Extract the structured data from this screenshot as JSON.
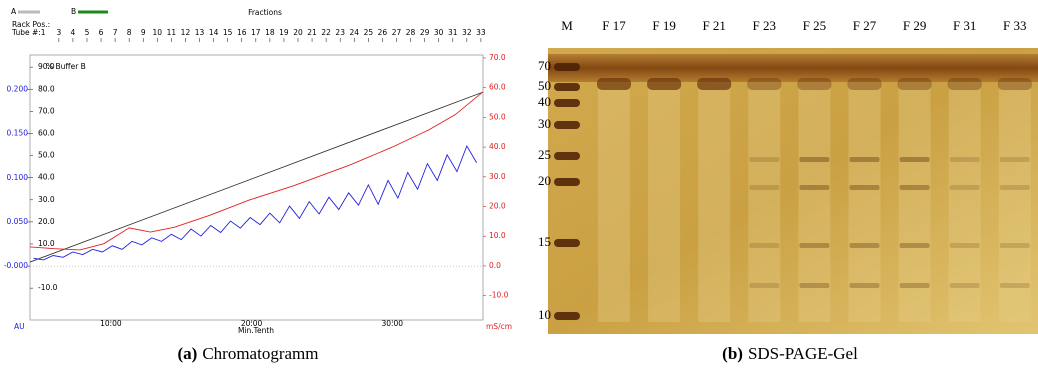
{
  "chart_data": {
    "type": "line",
    "header": {
      "rack": "Rack Pos.:",
      "tube": "Tube #:1",
      "a": "A",
      "b": "B",
      "fractions": "Fractions"
    },
    "x_label": "Min.Tenth",
    "y_label": "AU",
    "y2_label": "mS/cm",
    "y3_label": "% Buffer B",
    "xlim": [
      4.25,
      36.45
    ],
    "xticks": [
      {
        "value": 10,
        "label": "10.00"
      },
      {
        "value": 20,
        "label": "20.00"
      },
      {
        "value": 30,
        "label": "30.00"
      }
    ],
    "fraction_ticks": [
      {
        "value": 6.3,
        "label": "3"
      },
      {
        "value": 7.3,
        "label": "4"
      },
      {
        "value": 8.3,
        "label": "5"
      },
      {
        "value": 9.3,
        "label": "6"
      },
      {
        "value": 10.3,
        "label": "7"
      },
      {
        "value": 11.3,
        "label": "8"
      },
      {
        "value": 12.3,
        "label": "9"
      },
      {
        "value": 13.3,
        "label": "10"
      },
      {
        "value": 14.3,
        "label": "11"
      },
      {
        "value": 15.3,
        "label": "12"
      },
      {
        "value": 16.3,
        "label": "13"
      },
      {
        "value": 17.3,
        "label": "14"
      },
      {
        "value": 18.3,
        "label": "15"
      },
      {
        "value": 19.3,
        "label": "16"
      },
      {
        "value": 20.3,
        "label": "17"
      },
      {
        "value": 21.3,
        "label": "18"
      },
      {
        "value": 22.3,
        "label": "19"
      },
      {
        "value": 23.3,
        "label": "20"
      },
      {
        "value": 24.3,
        "label": "21"
      },
      {
        "value": 25.3,
        "label": "22"
      },
      {
        "value": 26.3,
        "label": "23"
      },
      {
        "value": 27.3,
        "label": "24"
      },
      {
        "value": 28.3,
        "label": "25"
      },
      {
        "value": 29.3,
        "label": "26"
      },
      {
        "value": 30.3,
        "label": "27"
      },
      {
        "value": 31.3,
        "label": "28"
      },
      {
        "value": 32.3,
        "label": "29"
      },
      {
        "value": 33.3,
        "label": "30"
      },
      {
        "value": 34.3,
        "label": "31"
      },
      {
        "value": 35.3,
        "label": "32"
      },
      {
        "value": 36.3,
        "label": "33"
      }
    ],
    "ylim": [
      -0.061,
      0.239
    ],
    "yticks": [
      {
        "value": 0,
        "label": "-0.000"
      },
      {
        "value": 0.05,
        "label": "0.050"
      },
      {
        "value": 0.1,
        "label": "0.100"
      },
      {
        "value": 0.15,
        "label": "0.150"
      },
      {
        "value": 0.2,
        "label": "0.200"
      }
    ],
    "y2lim": [
      -18.2,
      71.0
    ],
    "y2ticks": [
      {
        "value": -10,
        "label": "-10.0"
      },
      {
        "value": 0,
        "label": "0.0"
      },
      {
        "value": 10,
        "label": "10.0"
      },
      {
        "value": 20,
        "label": "20.0"
      },
      {
        "value": 30,
        "label": "30.0"
      },
      {
        "value": 40,
        "label": "40.0"
      },
      {
        "value": 50,
        "label": "50.0"
      },
      {
        "value": 60,
        "label": "60.0"
      },
      {
        "value": 70,
        "label": "70.0"
      }
    ],
    "y3lim": [
      -24.4,
      95.5
    ],
    "y3ticks": [
      {
        "value": -10,
        "label": "-10.0"
      },
      {
        "value": 10,
        "label": "10.0"
      },
      {
        "value": 20,
        "label": "20.0"
      },
      {
        "value": 30,
        "label": "30.0"
      },
      {
        "value": 40,
        "label": "40.0"
      },
      {
        "value": 50,
        "label": "50.0"
      },
      {
        "value": 60,
        "label": "60.0"
      },
      {
        "value": 70,
        "label": "70.0"
      },
      {
        "value": 80,
        "label": "80.0"
      },
      {
        "value": 90,
        "label": "90.0"
      }
    ],
    "series": [
      {
        "color": "#333333",
        "axis": "y3",
        "x": [
          4.25,
          36.45
        ],
        "values": [
          1.8,
          78.7
        ]
      },
      {
        "color": "#e02020",
        "axis": "y2",
        "x": [
          4.25,
          6,
          7.8,
          9.5,
          11.3,
          12.8,
          14.5,
          17,
          19.85,
          23,
          27,
          30,
          32.6,
          34.5,
          36.45
        ],
        "values": [
          6.4,
          5.8,
          5.4,
          7.5,
          12.8,
          11.4,
          13,
          17,
          22.2,
          27,
          34,
          40,
          45.8,
          51,
          58.6
        ]
      },
      {
        "color": "#2020e0",
        "axis": "y",
        "x": [
          4.5,
          5.2,
          5.9,
          6.6,
          7.3,
          8.0,
          8.7,
          9.4,
          10.1,
          10.8,
          11.5,
          12.2,
          12.9,
          13.6,
          14.3,
          15.0,
          15.7,
          16.4,
          17.1,
          17.8,
          18.5,
          19.2,
          19.9,
          20.6,
          21.3,
          22.0,
          22.7,
          23.4,
          24.1,
          24.8,
          25.5,
          26.2,
          26.9,
          27.6,
          28.3,
          29.0,
          29.7,
          30.4,
          31.1,
          31.8,
          32.5,
          33.2,
          33.9,
          34.6,
          35.3,
          36.0
        ],
        "values": [
          0.009,
          0.007,
          0.012,
          0.01,
          0.016,
          0.013,
          0.019,
          0.016,
          0.023,
          0.019,
          0.028,
          0.024,
          0.032,
          0.028,
          0.036,
          0.03,
          0.042,
          0.034,
          0.046,
          0.038,
          0.051,
          0.043,
          0.055,
          0.047,
          0.06,
          0.049,
          0.068,
          0.054,
          0.073,
          0.059,
          0.078,
          0.064,
          0.083,
          0.069,
          0.092,
          0.07,
          0.097,
          0.077,
          0.106,
          0.087,
          0.116,
          0.097,
          0.126,
          0.107,
          0.136,
          0.117
        ]
      }
    ]
  },
  "gel": {
    "lanes": [
      "M",
      "F 17",
      "F 19",
      "F 21",
      "F 23",
      "F 25",
      "F 27",
      "F 29",
      "F 31",
      "F 33"
    ],
    "markers": [
      "70",
      "50",
      "40",
      "30",
      "25",
      "20",
      "15",
      "10"
    ]
  },
  "captions": [
    {
      "label": "(a)",
      "text": "Chromatogramm"
    },
    {
      "label": "(b)",
      "text": "SDS-PAGE-Gel"
    }
  ]
}
